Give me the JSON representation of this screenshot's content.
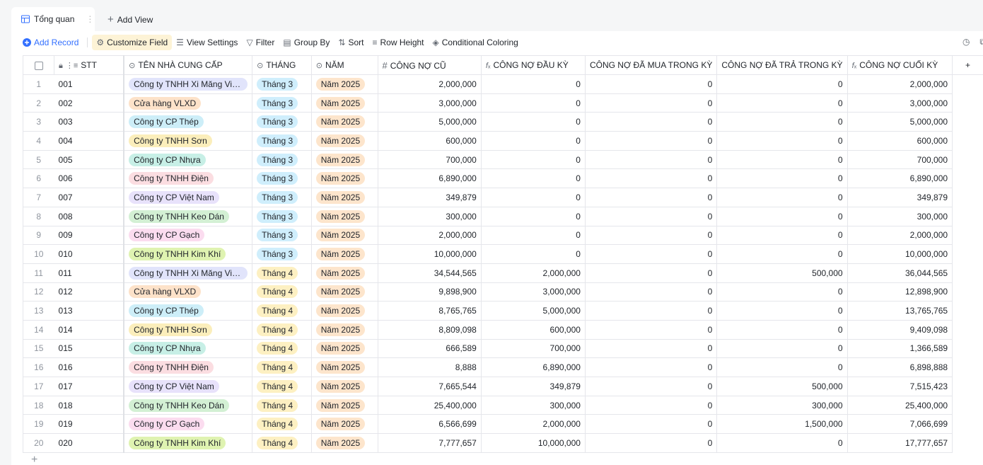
{
  "tabs": {
    "active": "Tổng quan",
    "add_view": "Add View"
  },
  "toolbar": {
    "add_record": "Add Record",
    "customize_field": "Customize Field",
    "view_settings": "View Settings",
    "filter": "Filter",
    "group_by": "Group By",
    "sort": "Sort",
    "row_height": "Row Height",
    "conditional_coloring": "Conditional Coloring"
  },
  "columns": {
    "stt": "STT",
    "supplier": "TÊN NHÀ CUNG CẤP",
    "month": "THÁNG",
    "year": "NĂM",
    "old_debt": "CÔNG NỢ CŨ",
    "opening_debt": "CÔNG NỢ ĐẦU KỲ",
    "purchased": "CÔNG NỢ ĐÃ MUA TRONG KỲ",
    "paid": "CÔNG NỢ ĐÃ TRẢ TRONG KỲ",
    "closing_debt": "CÔNG NỢ CUỐI KỲ"
  },
  "colors": {
    "accent": "#3370ff",
    "month3": "#cfeefc",
    "month4": "#fdf0c2",
    "year": "#fde5cc"
  },
  "rows": [
    {
      "idx": "1",
      "stt": "001",
      "supplier": "Công ty TNHH Xi Măng Việt...",
      "supplier_color": "#e1e4fb",
      "month": "Tháng 3",
      "year": "Năm 2025",
      "old": "2,000,000",
      "open": "0",
      "buy": "0",
      "paid": "0",
      "close": "2,000,000"
    },
    {
      "idx": "2",
      "stt": "002",
      "supplier": "Cửa hàng VLXD",
      "supplier_color": "#fde2c9",
      "month": "Tháng 3",
      "year": "Năm 2025",
      "old": "3,000,000",
      "open": "0",
      "buy": "0",
      "paid": "0",
      "close": "3,000,000"
    },
    {
      "idx": "3",
      "stt": "003",
      "supplier": "Công ty CP Thép",
      "supplier_color": "#cdeef8",
      "month": "Tháng 3",
      "year": "Năm 2025",
      "old": "5,000,000",
      "open": "0",
      "buy": "0",
      "paid": "0",
      "close": "5,000,000"
    },
    {
      "idx": "4",
      "stt": "004",
      "supplier": "Công ty TNHH Sơn",
      "supplier_color": "#fbeebb",
      "month": "Tháng 3",
      "year": "Năm 2025",
      "old": "600,000",
      "open": "0",
      "buy": "0",
      "paid": "0",
      "close": "600,000"
    },
    {
      "idx": "5",
      "stt": "005",
      "supplier": "Công ty CP Nhựa",
      "supplier_color": "#c7efe6",
      "month": "Tháng 3",
      "year": "Năm 2025",
      "old": "700,000",
      "open": "0",
      "buy": "0",
      "paid": "0",
      "close": "700,000"
    },
    {
      "idx": "6",
      "stt": "006",
      "supplier": "Công ty TNHH Điện",
      "supplier_color": "#fbdde1",
      "month": "Tháng 3",
      "year": "Năm 2025",
      "old": "6,890,000",
      "open": "0",
      "buy": "0",
      "paid": "0",
      "close": "6,890,000"
    },
    {
      "idx": "7",
      "stt": "007",
      "supplier": "Công ty CP  Việt Nam",
      "supplier_color": "#e8e2fb",
      "month": "Tháng 3",
      "year": "Năm 2025",
      "old": "349,879",
      "open": "0",
      "buy": "0",
      "paid": "0",
      "close": "349,879"
    },
    {
      "idx": "8",
      "stt": "008",
      "supplier": "Công ty TNHH Keo Dán",
      "supplier_color": "#d3f0d4",
      "month": "Tháng 3",
      "year": "Năm 2025",
      "old": "300,000",
      "open": "0",
      "buy": "0",
      "paid": "0",
      "close": "300,000"
    },
    {
      "idx": "9",
      "stt": "009",
      "supplier": "Công ty CP Gạch",
      "supplier_color": "#fbdcef",
      "month": "Tháng 3",
      "year": "Năm 2025",
      "old": "2,000,000",
      "open": "0",
      "buy": "0",
      "paid": "0",
      "close": "2,000,000"
    },
    {
      "idx": "10",
      "stt": "010",
      "supplier": "Công ty TNHH Kim Khí",
      "supplier_color": "#dff3b1",
      "month": "Tháng 3",
      "year": "Năm 2025",
      "old": "10,000,000",
      "open": "0",
      "buy": "0",
      "paid": "0",
      "close": "10,000,000"
    },
    {
      "idx": "11",
      "stt": "011",
      "supplier": "Công ty TNHH Xi Măng Việt...",
      "supplier_color": "#e1e4fb",
      "month": "Tháng 4",
      "year": "Năm 2025",
      "old": "34,544,565",
      "open": "2,000,000",
      "buy": "0",
      "paid": "500,000",
      "close": "36,044,565"
    },
    {
      "idx": "12",
      "stt": "012",
      "supplier": "Cửa hàng VLXD",
      "supplier_color": "#fde2c9",
      "month": "Tháng 4",
      "year": "Năm 2025",
      "old": "9,898,900",
      "open": "3,000,000",
      "buy": "0",
      "paid": "0",
      "close": "12,898,900"
    },
    {
      "idx": "13",
      "stt": "013",
      "supplier": "Công ty CP Thép",
      "supplier_color": "#cdeef8",
      "month": "Tháng 4",
      "year": "Năm 2025",
      "old": "8,765,765",
      "open": "5,000,000",
      "buy": "0",
      "paid": "0",
      "close": "13,765,765"
    },
    {
      "idx": "14",
      "stt": "014",
      "supplier": "Công ty TNHH Sơn",
      "supplier_color": "#fbeebb",
      "month": "Tháng 4",
      "year": "Năm 2025",
      "old": "8,809,098",
      "open": "600,000",
      "buy": "0",
      "paid": "0",
      "close": "9,409,098"
    },
    {
      "idx": "15",
      "stt": "015",
      "supplier": "Công ty CP Nhựa",
      "supplier_color": "#c7efe6",
      "month": "Tháng 4",
      "year": "Năm 2025",
      "old": "666,589",
      "open": "700,000",
      "buy": "0",
      "paid": "0",
      "close": "1,366,589"
    },
    {
      "idx": "16",
      "stt": "016",
      "supplier": "Công ty TNHH Điện",
      "supplier_color": "#fbdde1",
      "month": "Tháng 4",
      "year": "Năm 2025",
      "old": "8,888",
      "open": "6,890,000",
      "buy": "0",
      "paid": "0",
      "close": "6,898,888"
    },
    {
      "idx": "17",
      "stt": "017",
      "supplier": "Công ty CP  Việt Nam",
      "supplier_color": "#e8e2fb",
      "month": "Tháng 4",
      "year": "Năm 2025",
      "old": "7,665,544",
      "open": "349,879",
      "buy": "0",
      "paid": "500,000",
      "close": "7,515,423"
    },
    {
      "idx": "18",
      "stt": "018",
      "supplier": "Công ty TNHH Keo Dán",
      "supplier_color": "#d3f0d4",
      "month": "Tháng 4",
      "year": "Năm 2025",
      "old": "25,400,000",
      "open": "300,000",
      "buy": "0",
      "paid": "300,000",
      "close": "25,400,000"
    },
    {
      "idx": "19",
      "stt": "019",
      "supplier": "Công ty CP Gạch",
      "supplier_color": "#fbdcef",
      "month": "Tháng 4",
      "year": "Năm 2025",
      "old": "6,566,699",
      "open": "2,000,000",
      "buy": "0",
      "paid": "1,500,000",
      "close": "7,066,699"
    },
    {
      "idx": "20",
      "stt": "020",
      "supplier": "Công ty TNHH Kim Khí",
      "supplier_color": "#dff3b1",
      "month": "Tháng 4",
      "year": "Năm 2025",
      "old": "7,777,657",
      "open": "10,000,000",
      "buy": "0",
      "paid": "0",
      "close": "17,777,657"
    }
  ]
}
